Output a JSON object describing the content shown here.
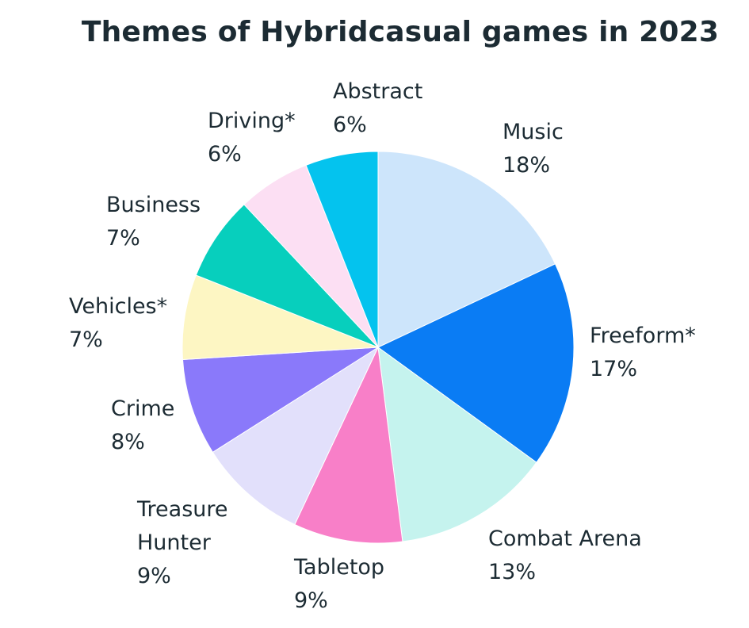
{
  "chart_data": {
    "type": "pie",
    "title": "Themes of Hybridcasual games in 2023",
    "slices": [
      {
        "label": "Music",
        "value": 18,
        "value_label": "18%",
        "color": "#cde5fb"
      },
      {
        "label": "Freeform*",
        "value": 17,
        "value_label": "17%",
        "color": "#0a7cf4"
      },
      {
        "label": "Combat Arena",
        "value": 13,
        "value_label": "13%",
        "color": "#c5f3ee"
      },
      {
        "label": "Tabletop",
        "value": 9,
        "value_label": "9%",
        "color": "#f87fc8"
      },
      {
        "label": "Treasure Hunter",
        "value": 9,
        "value_label": "9%",
        "color": "#e2e0fb"
      },
      {
        "label": "Crime",
        "value": 8,
        "value_label": "8%",
        "color": "#8a79fa"
      },
      {
        "label": "Vehicles*",
        "value": 7,
        "value_label": "7%",
        "color": "#fdf6c3"
      },
      {
        "label": "Business",
        "value": 7,
        "value_label": "7%",
        "color": "#07cfbd"
      },
      {
        "label": "Driving*",
        "value": 6,
        "value_label": "6%",
        "color": "#fcdff3"
      },
      {
        "label": "Abstract",
        "value": 6,
        "value_label": "6%",
        "color": "#04c3ee"
      }
    ]
  }
}
